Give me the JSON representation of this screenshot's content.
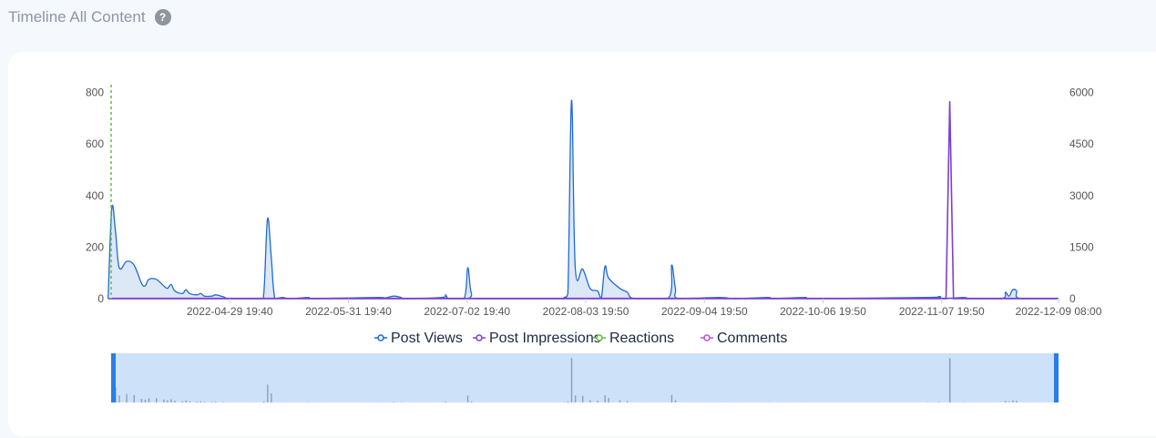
{
  "page": {
    "title": "Timeline All Content",
    "help_icon": "question-circle-icon",
    "help_glyph": "?"
  },
  "chart_data": {
    "type": "area",
    "x_ticks": [
      "2022-04-29 19:40",
      "2022-05-31 19:40",
      "2022-07-02 19:40",
      "2022-08-03 19:50",
      "2022-09-04 19:50",
      "2022-10-06 19:50",
      "2022-11-07 19:50",
      "2022-12-09 08:00"
    ],
    "x_start": "2022-03-28 19:40",
    "x_end": "2022-12-09 08:00",
    "y_left": {
      "ticks": [
        0,
        200,
        400,
        600,
        800
      ],
      "lim": [
        0,
        820
      ]
    },
    "y_right": {
      "ticks": [
        0,
        1500,
        3000,
        4500,
        6000
      ],
      "lim": [
        0,
        6150
      ]
    },
    "legend": [
      "Post Views",
      "Post Impressions",
      "Reactions",
      "Comments"
    ],
    "colors": {
      "post_views": "#1e6ad6",
      "post_views_fill": "#dde8f6",
      "post_impressions": "#7b3fd1",
      "reactions": "#5cbf3a",
      "comments": "#c04fd6",
      "navigator": "#cde1f8",
      "navigator_handle": "#2b7de9"
    },
    "series": [
      {
        "name": "Post Views",
        "axis": "left",
        "points": [
          [
            "2022-03-28",
            0
          ],
          [
            "2022-03-29",
            350
          ],
          [
            "2022-03-30",
            260
          ],
          [
            "2022-03-31",
            120
          ],
          [
            "2022-04-02",
            145
          ],
          [
            "2022-04-04",
            130
          ],
          [
            "2022-04-06",
            60
          ],
          [
            "2022-04-07",
            50
          ],
          [
            "2022-04-08",
            75
          ],
          [
            "2022-04-10",
            75
          ],
          [
            "2022-04-12",
            50
          ],
          [
            "2022-04-13",
            40
          ],
          [
            "2022-04-14",
            55
          ],
          [
            "2022-04-15",
            30
          ],
          [
            "2022-04-17",
            20
          ],
          [
            "2022-04-18",
            35
          ],
          [
            "2022-04-19",
            20
          ],
          [
            "2022-04-21",
            15
          ],
          [
            "2022-04-22",
            20
          ],
          [
            "2022-04-23",
            10
          ],
          [
            "2022-04-25",
            10
          ],
          [
            "2022-04-26",
            15
          ],
          [
            "2022-04-28",
            8
          ],
          [
            "2022-04-30",
            0
          ],
          [
            "2022-05-08",
            0
          ],
          [
            "2022-05-09",
            20
          ],
          [
            "2022-05-10",
            310
          ],
          [
            "2022-05-11",
            160
          ],
          [
            "2022-05-12",
            0
          ],
          [
            "2022-05-14",
            5
          ],
          [
            "2022-05-16",
            0
          ],
          [
            "2022-05-21",
            5
          ],
          [
            "2022-05-22",
            0
          ],
          [
            "2022-06-09",
            5
          ],
          [
            "2022-06-10",
            0
          ],
          [
            "2022-06-13",
            10
          ],
          [
            "2022-06-15",
            5
          ],
          [
            "2022-06-16",
            0
          ],
          [
            "2022-06-26",
            5
          ],
          [
            "2022-06-27",
            15
          ],
          [
            "2022-06-28",
            0
          ],
          [
            "2022-07-02",
            0
          ],
          [
            "2022-07-03",
            120
          ],
          [
            "2022-07-04",
            20
          ],
          [
            "2022-07-06",
            0
          ],
          [
            "2022-07-28",
            0
          ],
          [
            "2022-07-29",
            5
          ],
          [
            "2022-07-30",
            20
          ],
          [
            "2022-07-31",
            770
          ],
          [
            "2022-08-01",
            120
          ],
          [
            "2022-08-03",
            115
          ],
          [
            "2022-08-05",
            40
          ],
          [
            "2022-08-07",
            30
          ],
          [
            "2022-08-08",
            0
          ],
          [
            "2022-08-09",
            125
          ],
          [
            "2022-08-10",
            80
          ],
          [
            "2022-08-13",
            40
          ],
          [
            "2022-08-15",
            25
          ],
          [
            "2022-08-17",
            0
          ],
          [
            "2022-08-26",
            0
          ],
          [
            "2022-08-27",
            130
          ],
          [
            "2022-08-28",
            40
          ],
          [
            "2022-08-29",
            0
          ],
          [
            "2022-09-09",
            5
          ],
          [
            "2022-09-13",
            0
          ],
          [
            "2022-09-22",
            5
          ],
          [
            "2022-09-23",
            0
          ],
          [
            "2022-10-02",
            5
          ],
          [
            "2022-10-03",
            0
          ],
          [
            "2022-11-04",
            5
          ],
          [
            "2022-11-07",
            8
          ],
          [
            "2022-11-08",
            0
          ],
          [
            "2022-11-14",
            5
          ],
          [
            "2022-11-15",
            0
          ],
          [
            "2022-11-24",
            0
          ],
          [
            "2022-11-25",
            25
          ],
          [
            "2022-11-26",
            10
          ],
          [
            "2022-11-27",
            35
          ],
          [
            "2022-11-28",
            30
          ],
          [
            "2022-11-29",
            0
          ],
          [
            "2022-12-09",
            0
          ]
        ]
      },
      {
        "name": "Post Impressions",
        "axis": "right",
        "points": [
          [
            "2022-03-28",
            0
          ],
          [
            "2022-11-09",
            0
          ],
          [
            "2022-11-10",
            5750
          ],
          [
            "2022-11-11",
            0
          ],
          [
            "2022-12-09",
            0
          ]
        ]
      },
      {
        "name": "Reactions",
        "axis": "left",
        "points": [
          [
            "2022-03-28",
            0
          ],
          [
            "2022-12-09",
            0
          ]
        ]
      },
      {
        "name": "Comments",
        "axis": "left",
        "points": [
          [
            "2022-03-28",
            0
          ],
          [
            "2022-12-09",
            0
          ]
        ]
      }
    ]
  }
}
